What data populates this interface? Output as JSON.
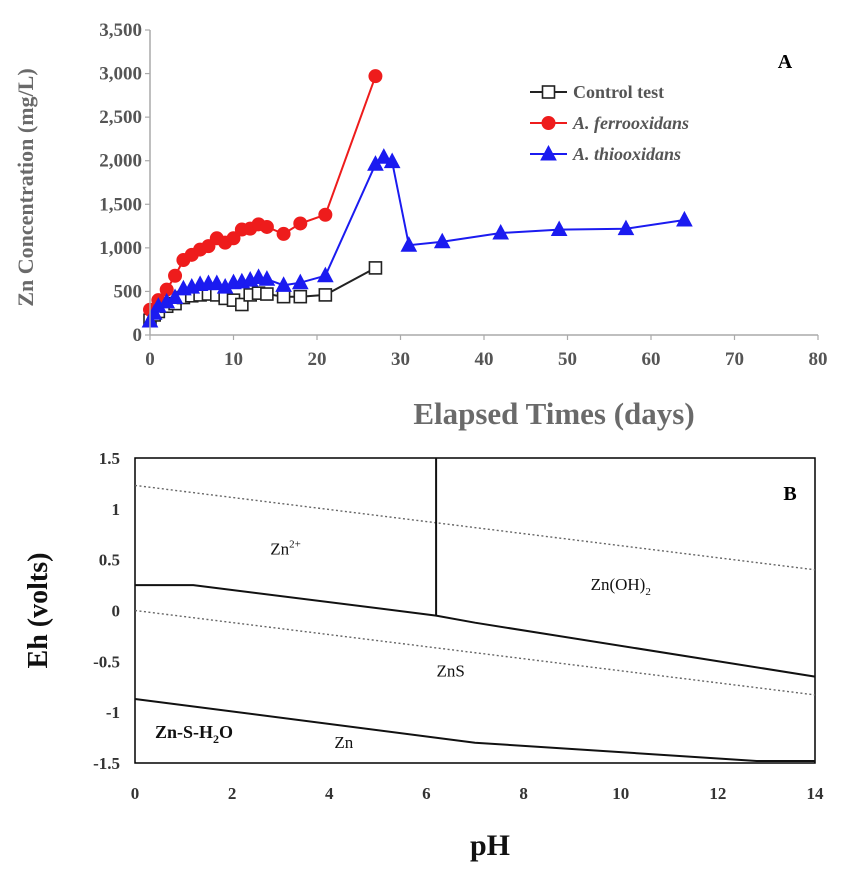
{
  "chart_data": [
    {
      "type": "line",
      "panel_label": "A",
      "xlabel": "Elapsed Times (days)",
      "ylabel": "Zn Concentration (mg/L)",
      "xlim": [
        0,
        80
      ],
      "ylim": [
        0,
        3500
      ],
      "xticks": [
        "0",
        "10",
        "20",
        "30",
        "40",
        "50",
        "60",
        "70",
        "80"
      ],
      "yticks": [
        "0",
        "500",
        "1,000",
        "1,500",
        "2,000",
        "2,500",
        "3,000",
        "3,500"
      ],
      "legend_position": "top-right",
      "series": [
        {
          "name": "Control test",
          "color": "#222222",
          "marker": "square-open",
          "points": [
            [
              0,
              170
            ],
            [
              0.5,
              230
            ],
            [
              1,
              270
            ],
            [
              2,
              330
            ],
            [
              3,
              360
            ],
            [
              4,
              430
            ],
            [
              5,
              450
            ],
            [
              6,
              460
            ],
            [
              7,
              470
            ],
            [
              8,
              460
            ],
            [
              9,
              420
            ],
            [
              10,
              400
            ],
            [
              11,
              350
            ],
            [
              12,
              460
            ],
            [
              13,
              480
            ],
            [
              14,
              470
            ],
            [
              16,
              440
            ],
            [
              18,
              440
            ],
            [
              21,
              460
            ],
            [
              27,
              770
            ]
          ]
        },
        {
          "name": "A. ferrooxidans",
          "color": "#ee1c1c",
          "marker": "circle",
          "points": [
            [
              0,
              290
            ],
            [
              1,
              400
            ],
            [
              2,
              520
            ],
            [
              3,
              680
            ],
            [
              4,
              860
            ],
            [
              5,
              920
            ],
            [
              6,
              980
            ],
            [
              7,
              1020
            ],
            [
              8,
              1110
            ],
            [
              9,
              1060
            ],
            [
              10,
              1110
            ],
            [
              11,
              1210
            ],
            [
              12,
              1220
            ],
            [
              13,
              1270
            ],
            [
              14,
              1240
            ],
            [
              16,
              1160
            ],
            [
              18,
              1280
            ],
            [
              21,
              1380
            ],
            [
              27,
              2970
            ]
          ]
        },
        {
          "name": "A. thiooxidans",
          "color": "#1b1bf0",
          "marker": "triangle",
          "points": [
            [
              0,
              160
            ],
            [
              0.5,
              250
            ],
            [
              1,
              330
            ],
            [
              2,
              380
            ],
            [
              3,
              430
            ],
            [
              4,
              530
            ],
            [
              5,
              550
            ],
            [
              6,
              580
            ],
            [
              7,
              590
            ],
            [
              8,
              590
            ],
            [
              9,
              550
            ],
            [
              10,
              600
            ],
            [
              11,
              610
            ],
            [
              12,
              630
            ],
            [
              13,
              660
            ],
            [
              14,
              640
            ],
            [
              16,
              570
            ],
            [
              18,
              600
            ],
            [
              21,
              680
            ],
            [
              27,
              1960
            ],
            [
              28,
              2040
            ],
            [
              29,
              1990
            ],
            [
              31,
              1030
            ],
            [
              35,
              1070
            ],
            [
              42,
              1170
            ],
            [
              49,
              1210
            ],
            [
              57,
              1220
            ],
            [
              64,
              1320
            ]
          ]
        }
      ]
    },
    {
      "type": "phase-diagram",
      "panel_label": "B",
      "xlabel": "pH",
      "ylabel": "Eh (volts)",
      "xlim": [
        0,
        14
      ],
      "ylim": [
        -1.5,
        1.5
      ],
      "xticks": [
        "0",
        "2",
        "4",
        "6",
        "8",
        "10",
        "12",
        "14"
      ],
      "yticks": [
        "-1.5",
        "-1",
        "-0.5",
        "0",
        "0.5",
        "1",
        "1.5"
      ],
      "system_label": {
        "main": "Zn-S-H",
        "sub": "2",
        "tail": "O"
      },
      "regions": [
        {
          "name": "Zn",
          "sup": "2+",
          "sub": "",
          "tail": "",
          "x": 3.1,
          "y": 0.55
        },
        {
          "name": "Zn(OH)",
          "sup": "",
          "sub": "2",
          "tail": "",
          "x": 10.0,
          "y": 0.2
        },
        {
          "name": "ZnS",
          "sup": "",
          "sub": "",
          "tail": "",
          "x": 6.5,
          "y": -0.65
        },
        {
          "name": "Zn",
          "sup": "",
          "sub": "",
          "tail": "",
          "x": 4.3,
          "y": -1.35
        }
      ],
      "solid_boundaries": [
        [
          [
            0,
            0.25
          ],
          [
            1.2,
            0.25
          ],
          [
            6.2,
            -0.05
          ],
          [
            7,
            -0.12
          ],
          [
            14,
            -0.65
          ]
        ],
        [
          [
            6.2,
            1.5
          ],
          [
            6.2,
            -0.05
          ]
        ],
        [
          [
            0,
            -0.87
          ],
          [
            7,
            -1.3
          ],
          [
            12.8,
            -1.48
          ],
          [
            14,
            -1.48
          ]
        ]
      ],
      "dotted_boundaries": [
        [
          [
            0,
            1.23
          ],
          [
            14,
            0.4
          ]
        ],
        [
          [
            0,
            0.0
          ],
          [
            14,
            -0.83
          ]
        ]
      ]
    }
  ]
}
